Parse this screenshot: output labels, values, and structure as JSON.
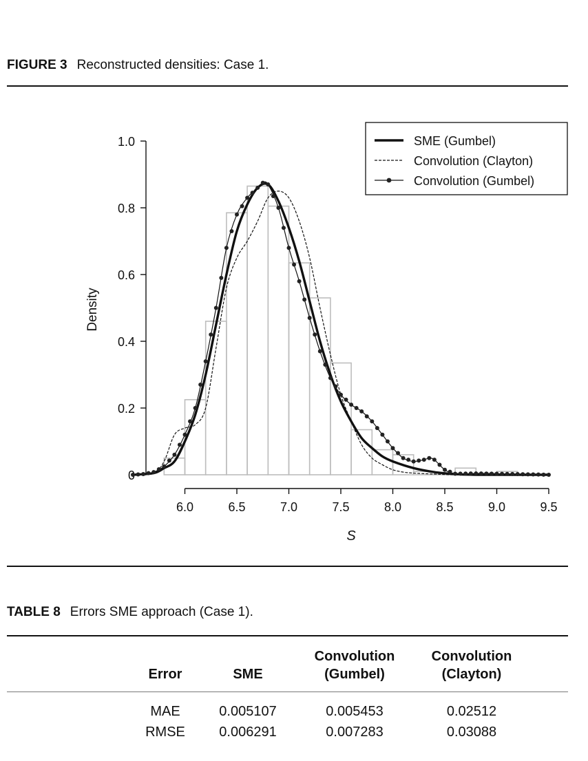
{
  "figure": {
    "label": "FIGURE 3",
    "caption": "Reconstructed densities: Case 1."
  },
  "chart_data": {
    "type": "line",
    "title": "",
    "xlabel": "S",
    "ylabel": "Density",
    "xlim": [
      5.5,
      9.5
    ],
    "ylim": [
      0,
      1.0
    ],
    "xticks": [
      "6.0",
      "6.5",
      "7.0",
      "7.5",
      "8.0",
      "8.5",
      "9.0",
      "9.5"
    ],
    "yticks": [
      "0",
      "0.2",
      "0.4",
      "0.6",
      "0.8",
      "1.0"
    ],
    "legend_position": "top-right",
    "histogram": {
      "bin_edges": [
        5.8,
        6.0,
        6.2,
        6.4,
        6.6,
        6.8,
        7.0,
        7.2,
        7.4,
        7.6,
        7.8,
        8.0,
        8.2,
        8.4,
        8.6,
        8.8,
        9.0,
        9.2
      ],
      "values": [
        0.05,
        0.225,
        0.46,
        0.785,
        0.865,
        0.805,
        0.635,
        0.53,
        0.335,
        0.135,
        0.075,
        0.06,
        0.01,
        0.005,
        0.02,
        0.005,
        0.01
      ]
    },
    "series": [
      {
        "name": "SME (Gumbel)",
        "style": "thick-solid",
        "x": [
          5.5,
          5.7,
          5.8,
          5.9,
          6.0,
          6.1,
          6.2,
          6.3,
          6.4,
          6.5,
          6.6,
          6.7,
          6.8,
          6.9,
          7.0,
          7.1,
          7.2,
          7.3,
          7.4,
          7.5,
          7.6,
          7.7,
          7.8,
          7.9,
          8.0,
          8.2,
          8.4,
          8.6,
          8.8,
          9.0,
          9.5
        ],
        "y": [
          0.0,
          0.005,
          0.02,
          0.04,
          0.1,
          0.18,
          0.3,
          0.45,
          0.6,
          0.73,
          0.81,
          0.86,
          0.87,
          0.82,
          0.74,
          0.64,
          0.52,
          0.4,
          0.3,
          0.22,
          0.16,
          0.11,
          0.08,
          0.055,
          0.04,
          0.02,
          0.008,
          0.002,
          0.0,
          0.0,
          0.0
        ]
      },
      {
        "name": "Convolution (Clayton)",
        "style": "dashed",
        "x": [
          5.5,
          5.7,
          5.8,
          5.9,
          6.0,
          6.1,
          6.2,
          6.3,
          6.4,
          6.5,
          6.6,
          6.7,
          6.8,
          6.9,
          7.0,
          7.1,
          7.2,
          7.3,
          7.4,
          7.5,
          7.6,
          7.7,
          7.8,
          7.9,
          8.0,
          8.1,
          8.2,
          8.4,
          8.6,
          9.0,
          9.5
        ],
        "y": [
          0.0,
          0.005,
          0.04,
          0.12,
          0.14,
          0.15,
          0.2,
          0.38,
          0.56,
          0.65,
          0.7,
          0.76,
          0.83,
          0.85,
          0.83,
          0.76,
          0.65,
          0.5,
          0.36,
          0.24,
          0.16,
          0.09,
          0.05,
          0.03,
          0.015,
          0.008,
          0.005,
          0.002,
          0.0,
          0.0,
          0.0
        ]
      },
      {
        "name": "Convolution (Gumbel)",
        "style": "line-dots",
        "x": [
          5.5,
          5.6,
          5.7,
          5.8,
          5.9,
          6.0,
          6.1,
          6.2,
          6.3,
          6.4,
          6.5,
          6.6,
          6.7,
          6.75,
          6.8,
          6.9,
          7.0,
          7.1,
          7.2,
          7.3,
          7.4,
          7.5,
          7.6,
          7.7,
          7.8,
          7.9,
          8.0,
          8.1,
          8.2,
          8.3,
          8.35,
          8.4,
          8.5,
          8.6,
          8.8,
          9.0,
          9.2,
          9.5
        ],
        "y": [
          0.0,
          0.002,
          0.008,
          0.025,
          0.06,
          0.12,
          0.2,
          0.34,
          0.5,
          0.68,
          0.78,
          0.83,
          0.86,
          0.875,
          0.87,
          0.8,
          0.68,
          0.58,
          0.47,
          0.37,
          0.29,
          0.24,
          0.21,
          0.19,
          0.16,
          0.12,
          0.08,
          0.05,
          0.04,
          0.045,
          0.05,
          0.045,
          0.015,
          0.003,
          0.004,
          0.003,
          0.002,
          0.0
        ]
      }
    ]
  },
  "table": {
    "label": "TABLE 8",
    "caption": "Errors SME approach (Case 1).",
    "headers": {
      "error": "Error",
      "sme": "SME",
      "conv_gumbel_1": "Convolution",
      "conv_gumbel_2": "(Gumbel)",
      "conv_clayton_1": "Convolution",
      "conv_clayton_2": "(Clayton)"
    },
    "rows": [
      {
        "error": "MAE",
        "sme": "0.005107",
        "conv_gumbel": "0.005453",
        "conv_clayton": "0.02512"
      },
      {
        "error": "RMSE",
        "sme": "0.006291",
        "conv_gumbel": "0.007283",
        "conv_clayton": "0.03088"
      }
    ]
  }
}
